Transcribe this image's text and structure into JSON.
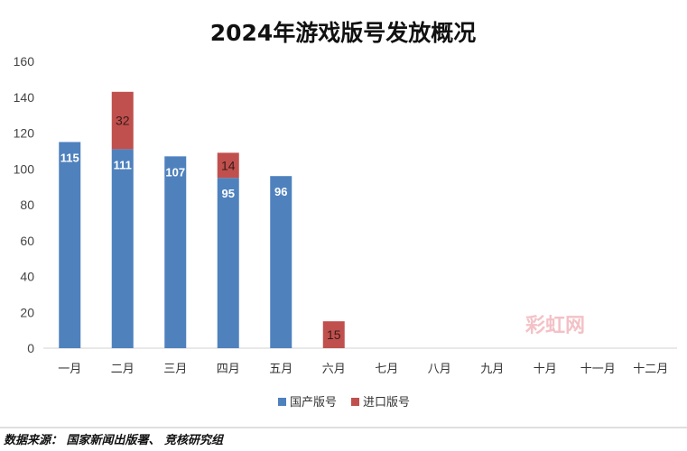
{
  "chart_data": {
    "type": "bar",
    "stacked": true,
    "title": "2024年游戏版号发放概况",
    "categories": [
      "一月",
      "二月",
      "三月",
      "四月",
      "五月",
      "六月",
      "七月",
      "八月",
      "九月",
      "十月",
      "十一月",
      "十二月"
    ],
    "series": [
      {
        "name": "国产版号",
        "color": "#4f81bd",
        "values": [
          115,
          111,
          107,
          95,
          96,
          0,
          0,
          0,
          0,
          0,
          0,
          0
        ]
      },
      {
        "name": "进口版号",
        "color": "#c0504d",
        "values": [
          0,
          32,
          0,
          14,
          0,
          15,
          0,
          0,
          0,
          0,
          0,
          0
        ]
      }
    ],
    "ylim": [
      0,
      160
    ],
    "yticks": [
      0,
      20,
      40,
      60,
      80,
      100,
      120,
      140,
      160
    ],
    "grid": false,
    "legend": "bottom"
  },
  "watermark": "彩虹网",
  "source_note": "数据来源：  国家新闻出版署、  竞核研究组"
}
